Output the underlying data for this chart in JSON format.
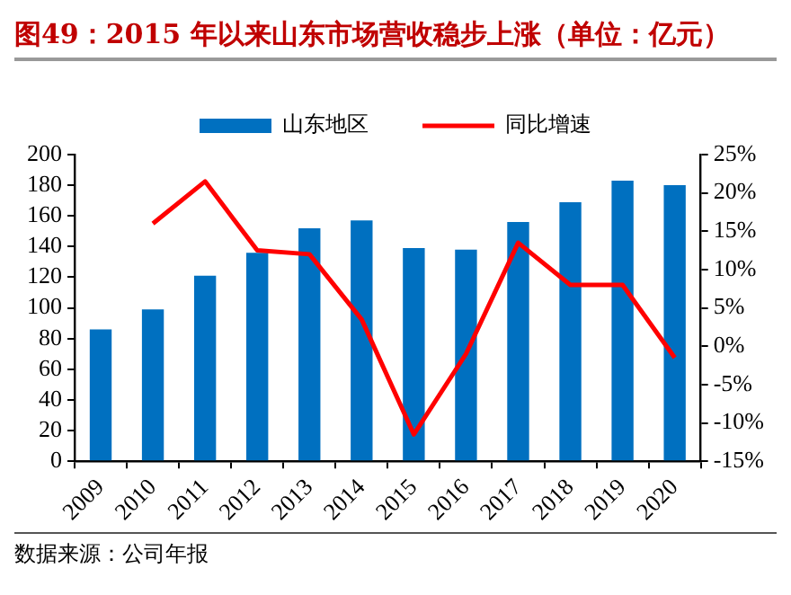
{
  "chart_data": {
    "type": "bar",
    "title": "图49：2015 年以来山东市场营收稳步上涨（单位：亿元）",
    "annotations": [
      "数据来源：公司年报"
    ],
    "categories": [
      "2009",
      "2010",
      "2011",
      "2012",
      "2013",
      "2014",
      "2015",
      "2016",
      "2017",
      "2018",
      "2019",
      "2020"
    ],
    "series": [
      {
        "name": "山东地区",
        "color": "#0070c0",
        "values": [
          86,
          99,
          121,
          136,
          152,
          157,
          139,
          138,
          156,
          169,
          183,
          180
        ]
      },
      {
        "name": "同比增速",
        "type": "line",
        "color": "#ff0000",
        "axis": "y2",
        "marker": "none",
        "values": [
          null,
          16,
          21.5,
          12.5,
          12,
          3.5,
          -11.5,
          -1,
          13.5,
          8,
          8,
          -1.5
        ]
      }
    ],
    "ylim": [
      0,
      200
    ],
    "yticks": [
      0,
      20,
      40,
      60,
      80,
      100,
      120,
      140,
      160,
      180,
      200
    ],
    "y2lim": [
      -15,
      25
    ],
    "y2ticks": [
      {
        "value": -15,
        "label": "-15%"
      },
      {
        "value": -10,
        "label": "-10%"
      },
      {
        "value": -5,
        "label": "-5%"
      },
      {
        "value": 0,
        "label": "0%"
      },
      {
        "value": 5,
        "label": "5%"
      },
      {
        "value": 10,
        "label": "10%"
      },
      {
        "value": 15,
        "label": "15%"
      },
      {
        "value": 20,
        "label": "20%"
      },
      {
        "value": 25,
        "label": "25%"
      }
    ],
    "legend": "top"
  }
}
